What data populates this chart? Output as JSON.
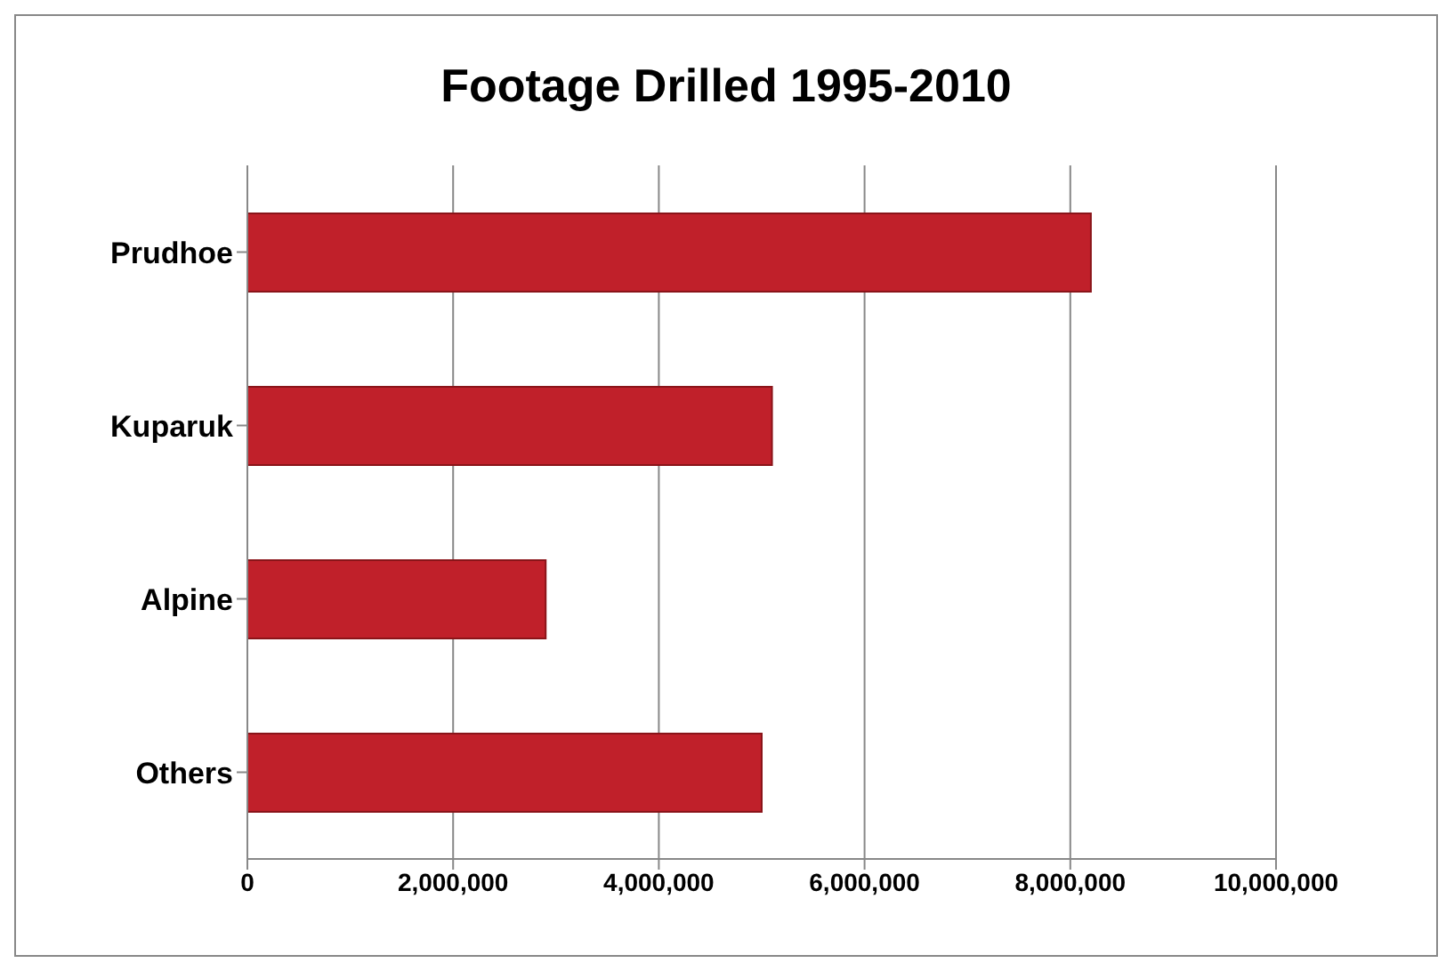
{
  "chart_data": {
    "type": "bar",
    "title": "Footage Drilled 1995-2010",
    "orientation": "horizontal",
    "categories": [
      "Prudhoe",
      "Kuparuk",
      "Alpine",
      "Others"
    ],
    "values": [
      8200000,
      5100000,
      2900000,
      5000000
    ],
    "color": "#c0202a",
    "xlim": [
      0,
      10000000
    ],
    "xticks": [
      {
        "value": 0,
        "label": "0"
      },
      {
        "value": 2000000,
        "label": "2,000,000"
      },
      {
        "value": 4000000,
        "label": "4,000,000"
      },
      {
        "value": 6000000,
        "label": "6,000,000"
      },
      {
        "value": 8000000,
        "label": "8,000,000"
      },
      {
        "value": 10000000,
        "label": "10,000,000"
      }
    ],
    "grid": "x"
  }
}
